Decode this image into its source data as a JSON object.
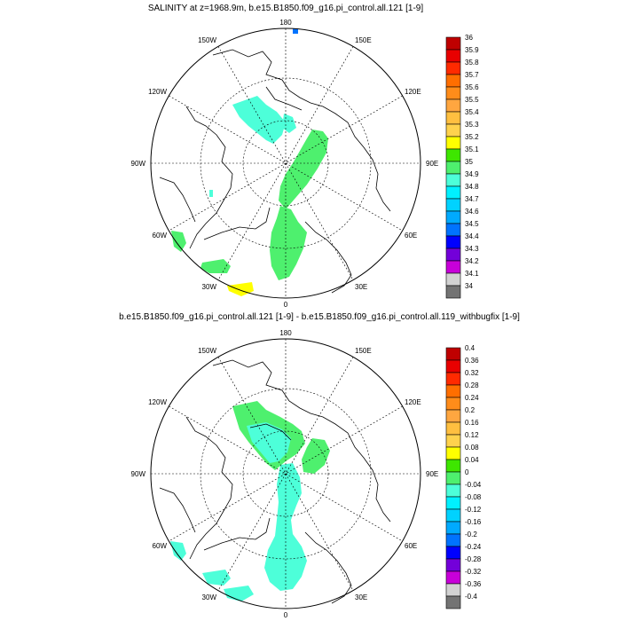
{
  "panels": [
    {
      "title": "SALINITY at z=1968.9m, b.e15.B1850.f09_g16.pi_control.all.121 [1-9]",
      "lon_labels": {
        "n": "180",
        "s": "0",
        "w": "90W",
        "e": "90E",
        "nw1": "150W",
        "ne1": "150E",
        "nw2": "120W",
        "ne2": "120E",
        "sw1": "60W",
        "se1": "60E",
        "sw2": "30W",
        "se2": "30E"
      },
      "colorbar": {
        "labels": [
          "36",
          "35.9",
          "35.8",
          "35.7",
          "35.6",
          "35.5",
          "35.4",
          "35.3",
          "35.2",
          "35.1",
          "35",
          "34.9",
          "34.8",
          "34.7",
          "34.6",
          "34.5",
          "34.4",
          "34.3",
          "34.2",
          "34.1",
          "34"
        ],
        "colors": [
          "#bf0000",
          "#e80000",
          "#ff2a00",
          "#ff6e00",
          "#ff8c1a",
          "#ffa640",
          "#ffbf40",
          "#ffd24d",
          "#ffff00",
          "#3ee600",
          "#4ef06e",
          "#4dffd9",
          "#00f0ff",
          "#00d2ff",
          "#00aaff",
          "#0073ff",
          "#0000ff",
          "#7300d9",
          "#c800d9",
          "#d2d2d2",
          "#737373"
        ]
      }
    },
    {
      "title": "b.e15.B1850.f09_g16.pi_control.all.121 [1-9] - b.e15.B1850.f09_g16.pi_control.all.119_withbugfix [1-9]",
      "lon_labels": {
        "n": "180",
        "s": "0",
        "w": "90W",
        "e": "90E",
        "nw1": "150W",
        "ne1": "150E",
        "nw2": "120W",
        "ne2": "120E",
        "sw1": "60W",
        "se1": "60E",
        "sw2": "30W",
        "se2": "30E"
      },
      "colorbar": {
        "labels": [
          "0.4",
          "0.36",
          "0.32",
          "0.28",
          "0.24",
          "0.2",
          "0.16",
          "0.12",
          "0.08",
          "0.04",
          "0",
          "-0.04",
          "-0.08",
          "-0.12",
          "-0.16",
          "-0.2",
          "-0.24",
          "-0.28",
          "-0.32",
          "-0.36",
          "-0.4"
        ],
        "colors": [
          "#bf0000",
          "#e80000",
          "#ff2a00",
          "#ff6e00",
          "#ff8c1a",
          "#ffa640",
          "#ffbf40",
          "#ffd24d",
          "#ffff00",
          "#3ee600",
          "#4ef06e",
          "#4dffd9",
          "#00f0ff",
          "#00d2ff",
          "#00aaff",
          "#0073ff",
          "#0000ff",
          "#7300d9",
          "#c800d9",
          "#d2d2d2",
          "#737373"
        ]
      }
    }
  ]
}
